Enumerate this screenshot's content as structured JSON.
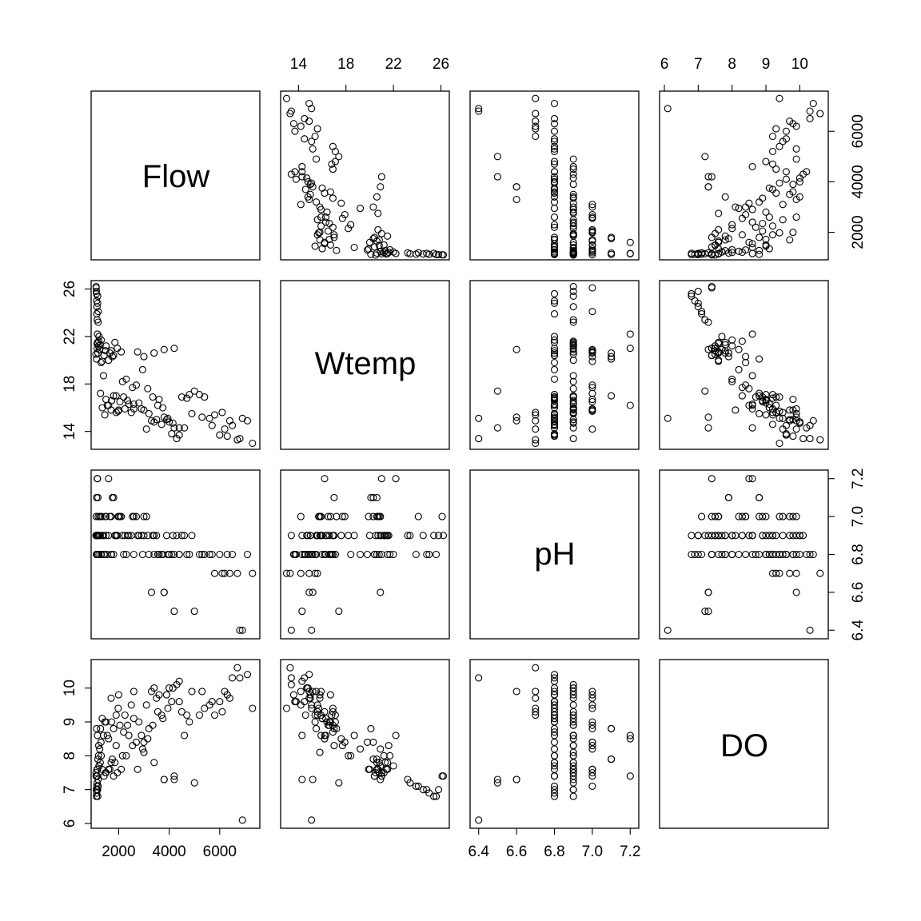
{
  "chart_data": {
    "type": "scatter",
    "variables": [
      "Flow",
      "Wtemp",
      "pH",
      "DO"
    ],
    "ranges": {
      "Flow": [
        1100,
        7400
      ],
      "Wtemp": [
        12.9,
        26.3
      ],
      "pH": [
        6.38,
        7.22
      ],
      "DO": [
        6.0,
        10.7
      ]
    },
    "ticks": {
      "Flow": [
        2000,
        4000,
        6000
      ],
      "Wtemp": [
        14,
        18,
        22,
        26
      ],
      "pH": [
        6.4,
        6.6,
        6.8,
        7.0,
        7.2
      ],
      "DO": [
        6,
        7,
        8,
        9,
        10
      ]
    },
    "tick_labels": {
      "Flow": [
        "2000",
        "4000",
        "6000"
      ],
      "Wtemp": [
        "14",
        "18",
        "22",
        "26"
      ],
      "pH": [
        "6.4",
        "6.6",
        "6.8",
        "7.0",
        "7.2"
      ],
      "DO": [
        "6",
        "7",
        "8",
        "9",
        "10"
      ]
    },
    "grid": false,
    "legend": "none",
    "x": {
      "Flow": [
        7400,
        6900,
        6700,
        6400,
        6100,
        5700,
        5200,
        4900,
        4400,
        3900,
        3600,
        3400,
        3100,
        2900,
        2700,
        2500,
        2400,
        2300,
        2200,
        2100,
        2000,
        1900,
        1850,
        1800,
        1750,
        1700,
        1650,
        1600,
        1550,
        1500,
        1450,
        1400,
        1380,
        1350,
        1320,
        1300,
        1280,
        1260,
        1240,
        1220,
        1200,
        1190,
        1180,
        1170,
        1160,
        1150,
        1140,
        1130,
        1120,
        1110,
        7100,
        6800,
        6500,
        6200,
        5900,
        5500,
        5000,
        4600,
        4200,
        3800,
        3500,
        3200,
        3000,
        2800,
        2600,
        2450,
        2350,
        2250,
        2150,
        2050,
        1950,
        1880,
        1820,
        1780,
        1720,
        1680,
        1620,
        1580,
        1520,
        1480,
        1420,
        1390,
        1360,
        1330,
        1310,
        1290,
        1270,
        1250,
        1230,
        1210,
        4100,
        3700,
        3300,
        2950,
        2650,
        4800,
        4300,
        3900,
        3450,
        3050,
        2750,
        2550,
        4700,
        4000,
        3350,
        2850,
        2600,
        2300,
        2100,
        1900,
        1700,
        1500,
        1350,
        1250,
        1180,
        1150,
        1130,
        5400,
        5100,
        4500,
        3800,
        3200,
        2700,
        2400,
        2200,
        1950,
        1750,
        1550,
        1450,
        1300,
        1200,
        1160,
        1140,
        1120,
        6000,
        5800,
        5300,
        4900,
        4100,
        3600,
        2900,
        2500,
        2000,
        1800,
        1600,
        1400,
        1280,
        1210,
        1170,
        1150,
        1130,
        1120,
        1110,
        1100
      ]
    },
    "y": {
      "Flow": [
        7400,
        6900,
        6700,
        6400,
        6100,
        5700,
        5200,
        4900,
        4400,
        3900,
        3600,
        3400,
        3100,
        2900,
        2700,
        2500,
        2400,
        2300,
        2200,
        2100,
        2000,
        1900,
        1850,
        1800,
        1750,
        1700,
        1650,
        1600,
        1550,
        1500,
        1450,
        1400,
        1380,
        1350,
        1320,
        1300,
        1280,
        1260,
        1240,
        1220,
        1200,
        1190,
        1180,
        1170,
        1160,
        1150,
        1140,
        1130,
        1120,
        1110,
        7100,
        6800,
        6500,
        6200,
        5900,
        5500,
        5000,
        4600,
        4200,
        3800,
        3500,
        3200,
        3000,
        2800,
        2600,
        2450,
        2350,
        2250,
        2150,
        2050,
        1950,
        1880,
        1820,
        1780,
        1720,
        1680,
        1620,
        1580,
        1520,
        1480,
        1420,
        1390,
        1360,
        1330,
        1310,
        1290,
        1270,
        1250,
        1230,
        1210,
        4100,
        3700,
        3300,
        2950,
        2650,
        4800,
        4300,
        3900,
        3450,
        3050,
        2750,
        2550,
        4700,
        4000,
        3350,
        2850,
        2600,
        2300,
        2100,
        1900,
        1700,
        1500,
        1350,
        1250,
        1180,
        1150,
        1130,
        5400,
        5100,
        4500,
        3800,
        3200,
        2700,
        2400,
        2200,
        1950,
        1750,
        1550,
        1450,
        1300,
        1200,
        1160,
        1140,
        1120,
        6000,
        5800,
        5300,
        4900,
        4100,
        3600,
        2900,
        2500,
        2000,
        1800,
        1600,
        1400,
        1280,
        1210,
        1170,
        1150,
        1130,
        1120,
        1110,
        1100
      ]
    },
    "observations": {
      "Flow": [
        7300,
        7100,
        6900,
        6700,
        6500,
        6300,
        6200,
        6000,
        5800,
        5600,
        5400,
        5200,
        5000,
        4800,
        4600,
        4400,
        4200,
        4000,
        3800,
        3600,
        3400,
        3200,
        3000,
        2800,
        2600,
        2400,
        2200,
        2000,
        1900,
        1800,
        1700,
        1600,
        1500,
        1400,
        1300,
        1250,
        1200,
        1180,
        1160,
        1150,
        1140,
        1130,
        1120,
        1110,
        1100,
        4500,
        4300,
        4100,
        3900,
        3700,
        3500,
        3300,
        3100,
        2900,
        2700,
        2500,
        2300,
        2100,
        1950,
        1850,
        1750,
        1650,
        1550,
        1450,
        1350,
        1280,
        1230,
        1190,
        1170,
        1150,
        4400,
        4150,
        3950,
        3750,
        3550,
        3350,
        3150,
        2950,
        2750,
        2550,
        2350,
        2150,
        2050,
        1900,
        1800,
        1700,
        1600,
        1500,
        1420,
        1340,
        1270,
        1220,
        1185,
        1165,
        1145,
        1125,
        6800,
        6400,
        6100,
        5700,
        5300,
        4900,
        4700,
        4200,
        3800,
        3400,
        3000,
        2600,
        2250,
        1980,
        1720,
        1480,
        1310,
        1210,
        1160,
        1135,
        1115,
        1105
      ],
      "Wtemp": [
        13.0,
        14.9,
        15.1,
        13.3,
        14.5,
        13.6,
        14.2,
        13.7,
        15.4,
        15.1,
        16.9,
        17.1,
        17.4,
        17.1,
        14.3,
        13.7,
        14.3,
        14.8,
        15.2,
        16.7,
        14.8,
        15.5,
        15.8,
        16.4,
        15.9,
        16.3,
        16.9,
        15.8,
        15.6,
        17.0,
        15.8,
        16.2,
        16.7,
        18.7,
        19.8,
        20.9,
        21.2,
        20.6,
        21.5,
        23.4,
        24.5,
        25.0,
        25.6,
        26.1,
        20.5,
        16.9,
        13.4,
        13.8,
        15.0,
        14.6,
        15.0,
        14.9,
        14.2,
        15.9,
        17.9,
        15.6,
        18.4,
        20.7,
        21.0,
        21.5,
        20.3,
        20.6,
        16.2,
        15.4,
        16.0,
        17.2,
        20.9,
        24.1,
        25.4,
        21.0,
        14.3,
        14.7,
        15.1,
        16.0,
        16.2,
        16.9,
        17.6,
        19.2,
        20.7,
        17.7,
        16.6,
        18.2,
        16.5,
        17.0,
        20.4,
        20.8,
        20.0,
        21.2,
        20.4,
        19.9,
        21.3,
        22.0,
        23.2,
        24.8,
        21.4,
        20.1,
        13.4,
        14.9,
        15.6,
        14.5,
        15.2,
        15.5,
        16.8,
        21.0,
        20.9,
        20.6,
        20.3,
        16.3,
        15.9,
        15.7,
        16.6,
        20.8,
        21.7,
        21.6,
        22.2,
        23.9,
        25.8,
        26.2
      ],
      "pH": [
        6.7,
        6.8,
        6.4,
        6.7,
        6.8,
        6.8,
        6.7,
        6.8,
        6.7,
        6.8,
        6.8,
        6.8,
        6.5,
        6.8,
        6.9,
        6.8,
        6.5,
        6.8,
        6.6,
        6.8,
        6.9,
        6.8,
        6.9,
        6.9,
        7.0,
        6.9,
        6.8,
        7.0,
        6.9,
        7.1,
        7.0,
        7.2,
        7.0,
        6.9,
        6.8,
        7.0,
        6.9,
        7.1,
        6.8,
        6.9,
        6.9,
        6.8,
        6.8,
        7.0,
        6.9,
        6.9,
        6.9,
        6.8,
        6.9,
        6.8,
        6.9,
        6.6,
        7.0,
        6.9,
        7.0,
        6.9,
        6.8,
        7.0,
        6.9,
        6.9,
        7.1,
        7.0,
        6.8,
        6.8,
        6.9,
        7.0,
        6.9,
        7.0,
        6.9,
        7.2,
        6.8,
        6.9,
        6.8,
        6.8,
        6.8,
        6.9,
        6.9,
        6.8,
        6.9,
        7.0,
        6.9,
        6.9,
        7.0,
        6.9,
        6.8,
        6.8,
        6.9,
        6.9,
        6.8,
        7.0,
        6.9,
        6.8,
        6.9,
        6.8,
        6.9,
        7.1,
        6.4,
        6.7,
        6.7,
        6.8,
        6.8,
        6.9,
        6.8,
        6.8,
        6.6,
        6.8,
        7.0,
        6.8,
        6.9,
        7.0,
        6.8,
        7.0,
        6.8,
        6.9,
        7.2,
        6.8,
        6.9,
        6.9
      ],
      "DO": [
        9.4,
        10.4,
        6.1,
        10.6,
        10.3,
        9.8,
        9.9,
        9.6,
        9.2,
        9.5,
        9.4,
        9.2,
        7.2,
        9.0,
        8.6,
        9.6,
        7.3,
        10.0,
        7.3,
        9.8,
        10.0,
        8.8,
        8.1,
        9.0,
        9.9,
        8.6,
        8.7,
        9.8,
        9.2,
        8.8,
        9.7,
        8.5,
        9.0,
        8.6,
        8.4,
        8.2,
        8.0,
        7.9,
        7.6,
        7.2,
        7.0,
        6.9,
        6.8,
        7.4,
        7.5,
        9.3,
        10.1,
        9.6,
        9.8,
        9.2,
        9.7,
        9.9,
        9.5,
        8.6,
        8.4,
        9.5,
        8.0,
        7.6,
        7.5,
        7.8,
        7.9,
        7.6,
        8.6,
        9.0,
        9.1,
        8.8,
        7.7,
        7.1,
        6.8,
        7.4,
        10.2,
        10.0,
        9.4,
        9.1,
        9.3,
        8.9,
        8.5,
        8.2,
        7.6,
        8.3,
        8.9,
        8.0,
        8.9,
        8.3,
        7.4,
        7.8,
        7.6,
        7.5,
        7.4,
        7.6,
        7.8,
        7.7,
        7.3,
        7.0,
        7.6,
        8.8,
        10.3,
        9.7,
        9.3,
        9.6,
        9.9,
        9.9,
        9.2,
        7.4,
        7.3,
        7.8,
        8.4,
        9.1,
        9.2,
        9.4,
        9.0,
        7.5,
        8.0,
        8.3,
        8.6,
        7.1,
        7.0,
        7.4
      ]
    }
  },
  "labels": {
    "flow": "Flow",
    "wtemp": "Wtemp",
    "ph": "pH",
    "do": "DO"
  }
}
